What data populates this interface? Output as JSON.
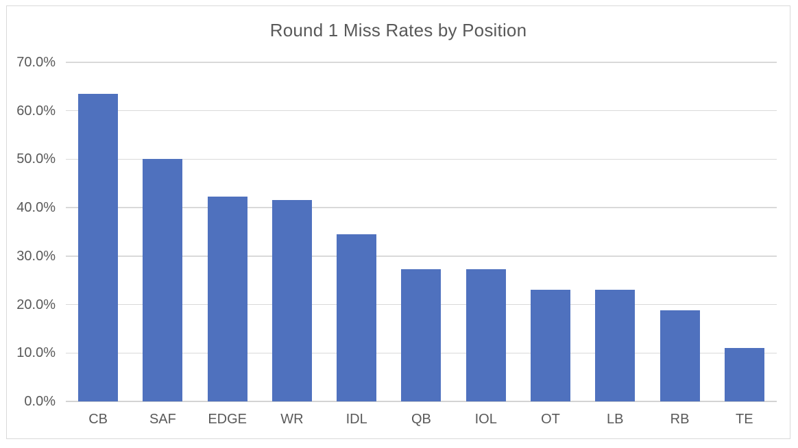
{
  "chart_data": {
    "type": "bar",
    "title": "Round 1 Miss Rates by Position",
    "categories": [
      "CB",
      "SAF",
      "EDGE",
      "WR",
      "IDL",
      "QB",
      "IOL",
      "OT",
      "LB",
      "RB",
      "TE"
    ],
    "values": [
      63.5,
      50.0,
      42.3,
      41.6,
      34.5,
      27.3,
      27.3,
      23.1,
      23.1,
      18.8,
      11.1
    ],
    "value_unit": "%",
    "xlabel": "",
    "ylabel": "",
    "ylim": [
      0,
      70
    ],
    "ytick_step": 10,
    "ytick_labels": [
      "0.0%",
      "10.0%",
      "20.0%",
      "30.0%",
      "40.0%",
      "50.0%",
      "60.0%",
      "70.0%"
    ],
    "grid": true,
    "legend": false,
    "colors": {
      "bar": "#4F71BE",
      "gridline": "#D9D9D9",
      "axis_line": "#D3D3D3",
      "tick_text": "#595959",
      "title_text": "#595959",
      "canvas_border": "#D9D9D9",
      "background": "#FFFFFF"
    }
  }
}
